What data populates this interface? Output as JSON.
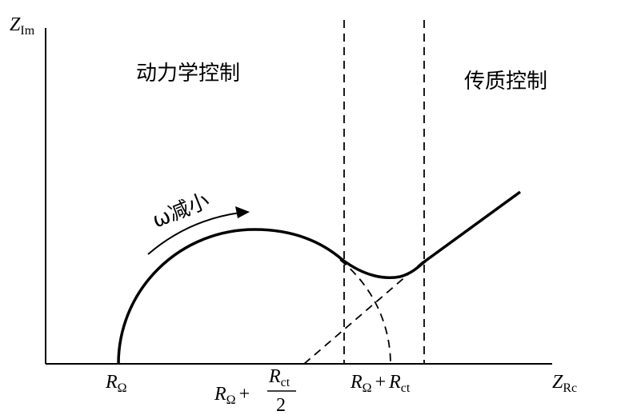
{
  "y_axis_label": {
    "main": "Z",
    "sub": "Im"
  },
  "x_axis_label": {
    "main": "Z",
    "sub": "Rc"
  },
  "regions": {
    "kinetic": "动力学控制",
    "mass_transfer": "传质控制"
  },
  "arrow_label": "ω减小",
  "x_marks": {
    "r_omega": {
      "main": "R",
      "sub": "Ω"
    },
    "half": {
      "main": "R",
      "sub": "Ω",
      "plus": "+",
      "num_main": "R",
      "num_sub": "ct",
      "den": "2"
    },
    "sum": {
      "main": "R",
      "sub": "Ω",
      "plus": "+",
      "term_main": "R",
      "term_sub": "ct"
    }
  }
}
